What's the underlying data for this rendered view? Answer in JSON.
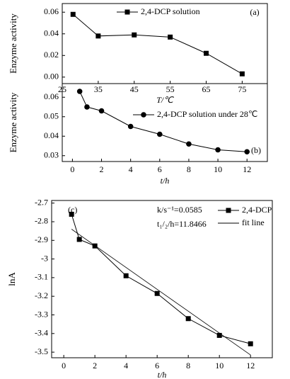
{
  "chart_data": [
    {
      "type": "line",
      "xlabel": "T/℃",
      "ylabel": "Enzyme activity",
      "annotations": [
        "(a)"
      ],
      "x": [
        28,
        35,
        45,
        55,
        65,
        75
      ],
      "xlim": [
        25,
        82
      ],
      "xticks": [
        25,
        35,
        45,
        55,
        65,
        75
      ],
      "ylim": [
        -0.006,
        0.068
      ],
      "yticks": [
        {
          "value": 0,
          "label": "0.00"
        },
        0.02,
        0.04,
        0.06
      ],
      "series": [
        {
          "name": "2,4-DCP solution",
          "color": "#000000",
          "marker": "square",
          "values": [
            0.058,
            0.038,
            0.039,
            0.037,
            0.022,
            0.003
          ]
        }
      ]
    },
    {
      "type": "line",
      "xlabel": "t/h",
      "ylabel": "Enzyme activity",
      "annotations": [
        "(b)"
      ],
      "x": [
        0.5,
        1,
        2,
        4,
        6,
        8,
        10,
        12
      ],
      "xlim": [
        -0.7,
        13.4
      ],
      "xticks": [
        0,
        2,
        4,
        6,
        8,
        10,
        12
      ],
      "ylim": [
        0.027,
        0.067
      ],
      "yticks": [
        0.03,
        0.04,
        0.05,
        0.06
      ],
      "series": [
        {
          "name": "2,4-DCP solution under 28℃",
          "color": "#000000",
          "marker": "circle",
          "values": [
            0.063,
            0.055,
            0.053,
            0.045,
            0.041,
            0.036,
            0.033,
            0.032
          ]
        }
      ]
    },
    {
      "type": "line",
      "xlabel": "t/h",
      "ylabel": "lnA",
      "annotations": [
        "(c)",
        "k/s⁻¹=0.0585",
        "t₁/₂/h=11.8466"
      ],
      "x": [
        0.5,
        1,
        2,
        4,
        6,
        8,
        10,
        12
      ],
      "xlim": [
        -0.78,
        13.4
      ],
      "xticks": [
        0,
        2,
        4,
        6,
        8,
        10,
        12
      ],
      "ylim": [
        -3.53,
        -2.686
      ],
      "yticks": [
        -2.7,
        -2.8,
        -2.9,
        -3.0,
        -3.1,
        -3.2,
        -3.3,
        -3.4,
        -3.5
      ],
      "series": [
        {
          "name": "2,4-DCP",
          "color": "#000000",
          "marker": "square",
          "values": [
            -2.76,
            -2.895,
            -2.93,
            -3.09,
            -3.185,
            -3.32,
            -3.41,
            -3.455
          ]
        },
        {
          "name": "fit line",
          "color": "#000000",
          "marker": "none",
          "x": [
            0.5,
            12
          ],
          "values": [
            -2.84,
            -3.515
          ]
        }
      ]
    }
  ]
}
